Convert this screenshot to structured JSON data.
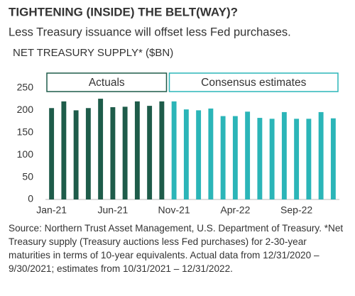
{
  "chart_data": {
    "type": "bar",
    "title": "TIGHTENING (INSIDE) THE BELT(WAY)?",
    "subtitle": "Less Treasury issuance will offset less Fed purchases.",
    "y_label": "NET TREASURY SUPPLY* ($BN)",
    "categories": [
      "Jan-21",
      null,
      null,
      null,
      null,
      "Jun-21",
      null,
      null,
      null,
      null,
      "Nov-21",
      null,
      null,
      null,
      null,
      "Apr-22",
      null,
      null,
      null,
      null,
      "Sep-22",
      null,
      null,
      null
    ],
    "series": [
      {
        "name": "Actuals",
        "color": "#1e5c4a",
        "values": [
          205,
          220,
          200,
          205,
          226,
          207,
          208,
          220,
          210,
          220,
          null,
          null,
          null,
          null,
          null,
          null,
          null,
          null,
          null,
          null,
          null,
          null,
          null,
          null
        ]
      },
      {
        "name": "Consensus estimates",
        "color": "#2bb5b8",
        "values": [
          null,
          null,
          null,
          null,
          null,
          null,
          null,
          null,
          null,
          null,
          220,
          202,
          200,
          204,
          187,
          187,
          197,
          183,
          181,
          196,
          181,
          181,
          196,
          182
        ]
      }
    ],
    "ylim": [
      0,
      250
    ],
    "yticks": [
      0,
      50,
      100,
      150,
      200,
      250
    ],
    "grid": false,
    "source": "Source: Northern Trust Asset Management, U.S. Department of Treasury. *Net Treasury supply (Treasury auctions less Fed purchases) for 2-30-year maturities in terms of 10-year equivalents. Actual data from 12/31/2020 – 9/30/2021; estimates from 10/31/2021 – 12/31/2022."
  }
}
